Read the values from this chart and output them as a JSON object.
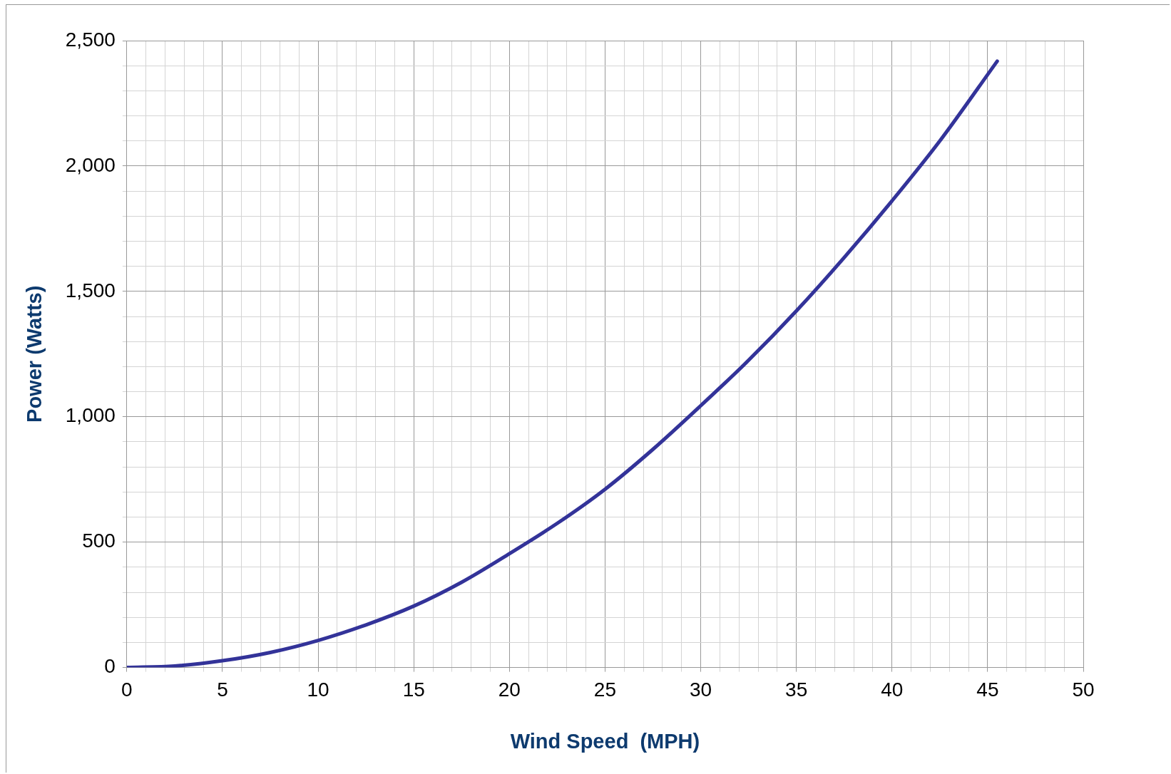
{
  "chart_data": {
    "type": "line",
    "xlabel": "Wind Speed  (MPH)",
    "ylabel": "Power (Watts)",
    "x": [
      0,
      2.5,
      5,
      7.5,
      10,
      12.5,
      15,
      17.5,
      20,
      22.5,
      25,
      27.5,
      30,
      32.5,
      35,
      37.5,
      40,
      42.5,
      45.5
    ],
    "series": [
      {
        "color": "#333399",
        "values": [
          0,
          6,
          27,
          60,
          108,
          170,
          245,
          340,
          454,
          575,
          711,
          870,
          1044,
          1225,
          1422,
          1635,
          1861,
          2100,
          2418
        ]
      }
    ],
    "xlim": [
      0,
      50
    ],
    "ylim": [
      0,
      2500
    ],
    "xticks": [
      0,
      {
        "value": 1,
        "label": null
      },
      {
        "value": 2,
        "label": null
      },
      {
        "value": 3,
        "label": null
      },
      {
        "value": 4,
        "label": null
      },
      5,
      {
        "value": 6,
        "label": null
      },
      {
        "value": 7,
        "label": null
      },
      {
        "value": 8,
        "label": null
      },
      {
        "value": 9,
        "label": null
      },
      10,
      {
        "value": 11,
        "label": null
      },
      {
        "value": 12,
        "label": null
      },
      {
        "value": 13,
        "label": null
      },
      {
        "value": 14,
        "label": null
      },
      15,
      {
        "value": 16,
        "label": null
      },
      {
        "value": 17,
        "label": null
      },
      {
        "value": 18,
        "label": null
      },
      {
        "value": 19,
        "label": null
      },
      20,
      {
        "value": 21,
        "label": null
      },
      {
        "value": 22,
        "label": null
      },
      {
        "value": 23,
        "label": null
      },
      {
        "value": 24,
        "label": null
      },
      25,
      {
        "value": 26,
        "label": null
      },
      {
        "value": 27,
        "label": null
      },
      {
        "value": 28,
        "label": null
      },
      {
        "value": 29,
        "label": null
      },
      30,
      {
        "value": 31,
        "label": null
      },
      {
        "value": 32,
        "label": null
      },
      {
        "value": 33,
        "label": null
      },
      {
        "value": 34,
        "label": null
      },
      35,
      {
        "value": 36,
        "label": null
      },
      {
        "value": 37,
        "label": null
      },
      {
        "value": 38,
        "label": null
      },
      {
        "value": 39,
        "label": null
      },
      40,
      {
        "value": 41,
        "label": null
      },
      {
        "value": 42,
        "label": null
      },
      {
        "value": 43,
        "label": null
      },
      {
        "value": 44,
        "label": null
      },
      45,
      {
        "value": 46,
        "label": null
      },
      {
        "value": 47,
        "label": null
      },
      {
        "value": 48,
        "label": null
      },
      {
        "value": 49,
        "label": null
      },
      50
    ],
    "yticks": [
      0,
      {
        "value": 100,
        "label": null
      },
      {
        "value": 200,
        "label": null
      },
      {
        "value": 300,
        "label": null
      },
      {
        "value": 400,
        "label": null
      },
      {
        "value": 500,
        "label": "500"
      },
      {
        "value": 600,
        "label": null
      },
      {
        "value": 700,
        "label": null
      },
      {
        "value": 800,
        "label": null
      },
      {
        "value": 900,
        "label": null
      },
      {
        "value": 1000,
        "label": "1,000"
      },
      {
        "value": 1100,
        "label": null
      },
      {
        "value": 1200,
        "label": null
      },
      {
        "value": 1300,
        "label": null
      },
      {
        "value": 1400,
        "label": null
      },
      {
        "value": 1500,
        "label": "1,500"
      },
      {
        "value": 1600,
        "label": null
      },
      {
        "value": 1700,
        "label": null
      },
      {
        "value": 1800,
        "label": null
      },
      {
        "value": 1900,
        "label": null
      },
      {
        "value": 2000,
        "label": "2,000"
      },
      {
        "value": 2100,
        "label": null
      },
      {
        "value": 2200,
        "label": null
      },
      {
        "value": 2300,
        "label": null
      },
      {
        "value": 2400,
        "label": null
      },
      {
        "value": 2500,
        "label": "2,500"
      }
    ],
    "grid": true,
    "legend": false,
    "marker": "none",
    "line_style": "solid"
  }
}
